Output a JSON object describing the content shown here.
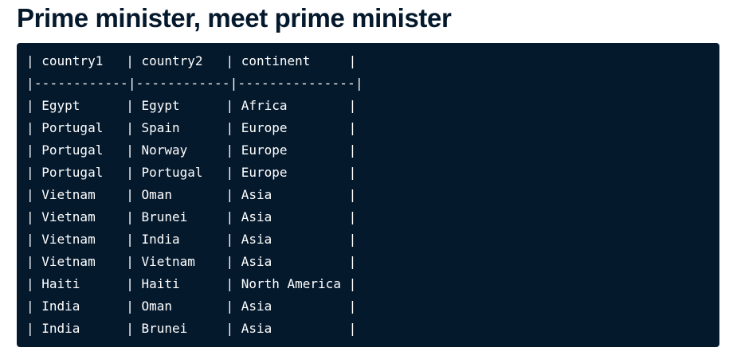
{
  "page": {
    "title": "Prime minister, meet prime minister"
  },
  "code_block": {
    "lines": [
      "| country1   | country2   | continent     |",
      "|------------|------------|---------------|",
      "| Egypt      | Egypt      | Africa        |",
      "| Portugal   | Spain      | Europe        |",
      "| Portugal   | Norway     | Europe        |",
      "| Portugal   | Portugal   | Europe        |",
      "| Vietnam    | Oman       | Asia          |",
      "| Vietnam    | Brunei     | Asia          |",
      "| Vietnam    | India      | Asia          |",
      "| Vietnam    | Vietnam    | Asia          |",
      "| Haiti      | Haiti      | North America |",
      "| India      | Oman       | Asia          |",
      "| India      | Brunei     | Asia          |"
    ]
  },
  "colors": {
    "title": "#05192d",
    "code_background": "#05192d",
    "code_text": "#ffffff"
  }
}
